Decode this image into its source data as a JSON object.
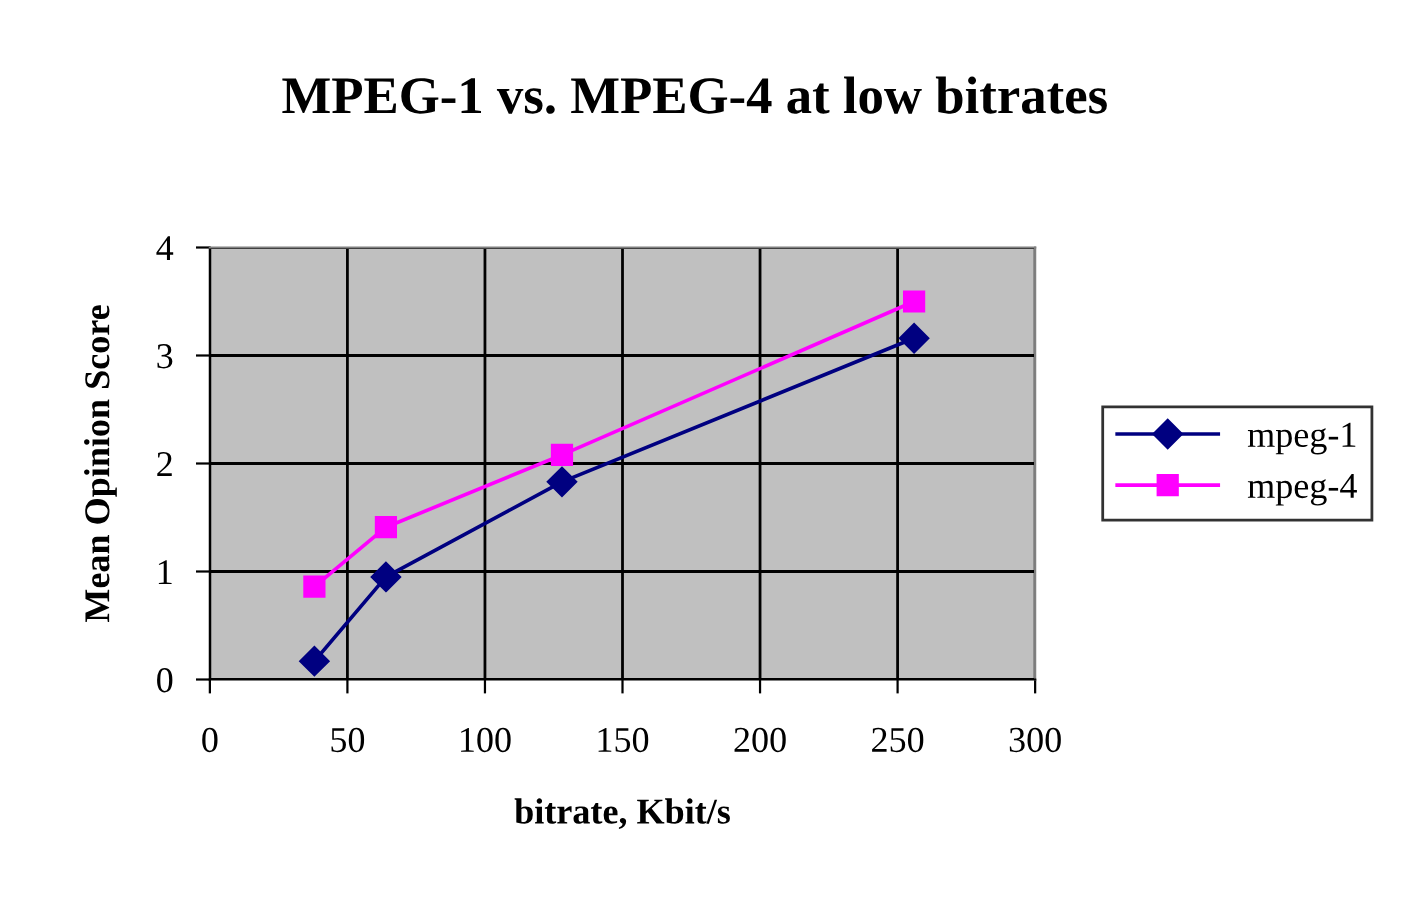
{
  "chart_data": {
    "type": "line",
    "title": "MPEG-1 vs. MPEG-4 at low bitrates",
    "xlabel": "bitrate, Kbit/s",
    "ylabel": "Mean Opinion Score",
    "x": [
      38,
      64,
      128,
      256
    ],
    "series": [
      {
        "name": "mpeg-1",
        "color": "#000080",
        "marker": "diamond",
        "values": [
          0.17,
          0.95,
          1.83,
          3.16
        ]
      },
      {
        "name": "mpeg-4",
        "color": "#ff00ff",
        "marker": "square",
        "values": [
          0.86,
          1.41,
          2.08,
          3.5
        ]
      }
    ],
    "xlim": [
      0,
      300
    ],
    "xticks": [
      0,
      50,
      100,
      150,
      200,
      250,
      300
    ],
    "ylim": [
      0,
      4
    ],
    "yticks": [
      0,
      1,
      2,
      3,
      4
    ],
    "grid": true,
    "legend": "right",
    "line_style": "solid"
  }
}
